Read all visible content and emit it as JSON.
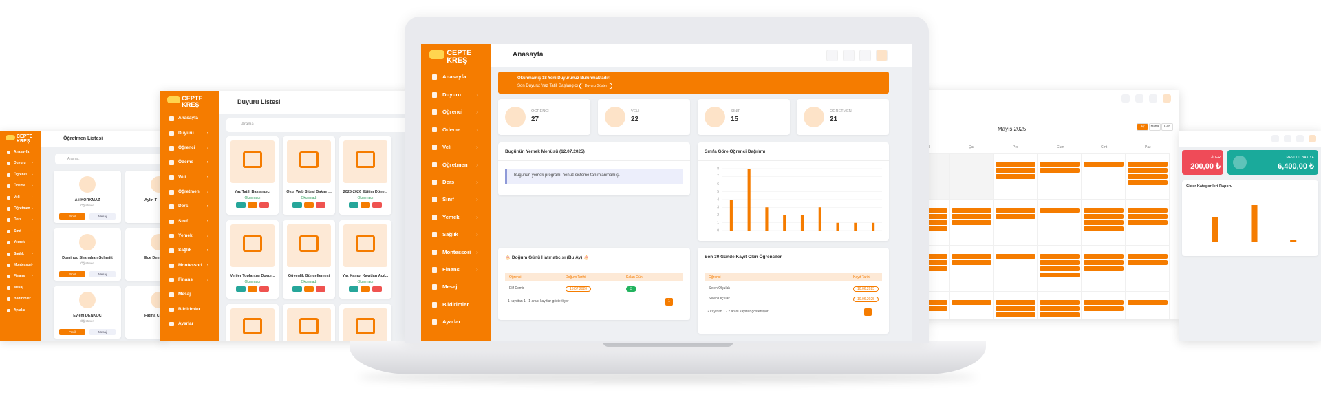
{
  "brand": "CEPTE KREŞ",
  "menu": [
    "Anasayfa",
    "Duyuru",
    "Öğrenci",
    "Ödeme",
    "Veli",
    "Öğretmen",
    "Ders",
    "Sınıf",
    "Yemek",
    "Sağlık",
    "Montessori",
    "Finans",
    "Mesaj",
    "Bildirimler",
    "Ayarlar"
  ],
  "teachers": {
    "title": "Öğretmen Listesi",
    "search": "Arama...",
    "cards": [
      {
        "name": "Ali KORKMAZ",
        "role": "Öğretmen"
      },
      {
        "name": "Domingo Shanahan-Schmitt",
        "role": "Öğretmen"
      },
      {
        "name": "Eylem DENKOÇ",
        "role": "Öğretmen"
      }
    ],
    "partial": [
      "Aylin T",
      "Ece Dem",
      "Fatma Ç"
    ],
    "profile": "Profil",
    "message": "Mesaj"
  },
  "announcements": {
    "title": "Duyuru Listesi",
    "search": "Arama...",
    "cards": [
      "Yaz Tatili Başlangıcı",
      "Okul Web Sitesi Bakım ...",
      "2025-2026 Eğitim Döne...",
      "Veliler Toplantısı Duyur...",
      "Güvenlik Güncellemesi",
      "Yaz Kampı Kayıtları Açıl..."
    ],
    "status": "Okunmadı"
  },
  "main": {
    "header": "Anasayfa",
    "banner": {
      "title": "Okunmamış 18 Yeni Duyurunuz Bulunmaktadır!",
      "last": "Son Duyuru: Yaz Tatili Başlangıcı",
      "button": "Duyuru Göster"
    },
    "stats": [
      {
        "label": "ÖĞRENCİ",
        "value": "27"
      },
      {
        "label": "VELİ",
        "value": "22"
      },
      {
        "label": "SINIF",
        "value": "15"
      },
      {
        "label": "ÖĞRETMEN",
        "value": "21"
      }
    ],
    "menu_card": {
      "title": "Bugünün Yemek Menüsü (12.07.2025)",
      "text": "Bugünün yemek programı henüz sisteme tanımlanmamış."
    },
    "birthday": {
      "title": "🎂 Doğum Günü Hatırlatıcısı (Bu Ay) 🎂",
      "headers": [
        "Öğrenci",
        "Doğum Tarihi",
        "Kalan Gün"
      ],
      "rows": [
        [
          "Elif Demir",
          "15.07.2020",
          "3"
        ]
      ],
      "info": "1 kayıttan 1 - 1 arası kayıtlar gösteriliyor",
      "page": "1"
    },
    "recent": {
      "title": "Son 30 Günde Kayıt Olan Öğrenciler",
      "headers": [
        "Öğrenci",
        "Kayıt Tarihi"
      ],
      "rows": [
        [
          "Selen Olçulak",
          "10.06.2025"
        ],
        [
          "Selen Olçulak",
          "10.06.2025"
        ]
      ],
      "info": "2 kayıttan 1 - 2 arası kayıtlar gösteriliyor",
      "page": "1"
    }
  },
  "calendar": {
    "title": "Mayıs 2025",
    "views": [
      "Ay",
      "Hafta",
      "Gün"
    ],
    "weekdays": [
      "Sal",
      "Çar",
      "Per",
      "Cum",
      "Cmt",
      "Paz"
    ]
  },
  "finance": {
    "expense_label": "GİDER",
    "expense": "200,00 ₺",
    "balance_label": "MEVCUT BAKİYE",
    "balance": "6,400,00 ₺"
  },
  "chart_data": [
    {
      "type": "bar",
      "title": "Sınıfa Göre Öğrenci Dağılımı",
      "categories": [
        null,
        null,
        null,
        null,
        null,
        null,
        null,
        null,
        null
      ],
      "values": [
        4,
        8,
        3,
        2,
        2,
        3,
        1,
        1,
        1
      ],
      "color": "#f57c00",
      "ylim": [
        0,
        8
      ],
      "yticks": [
        0,
        1,
        2,
        3,
        4,
        5,
        6,
        7,
        8
      ],
      "grid": true
    },
    {
      "type": "bar",
      "title": "Gider Kategorileri Raporu",
      "categories": [
        null,
        null,
        null
      ],
      "values": [
        0.6,
        0.9,
        0.05
      ],
      "color": "#f57c00",
      "ylim": [
        0,
        1
      ]
    }
  ]
}
